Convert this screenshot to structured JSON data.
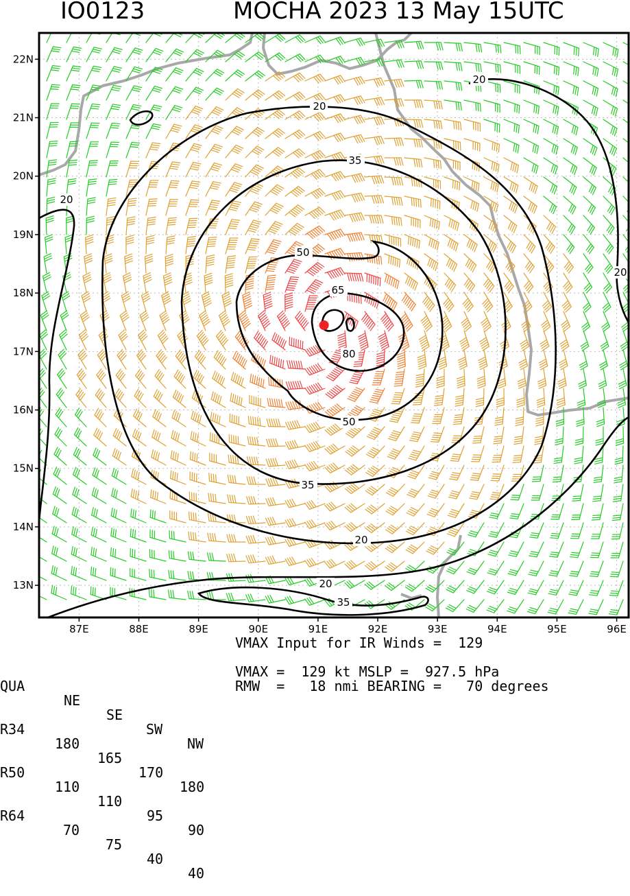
{
  "header": {
    "storm_id": "IO0123",
    "title": "MOCHA 2023 13 May 15UTC"
  },
  "map": {
    "lat_ticks": [
      "22N",
      "21N",
      "20N",
      "19N",
      "18N",
      "17N",
      "16N",
      "15N",
      "14N",
      "13N"
    ],
    "lon_ticks": [
      "87E",
      "88E",
      "89E",
      "90E",
      "91E",
      "92E",
      "93E",
      "94E",
      "95E",
      "96E"
    ],
    "storm_center": {
      "lon": 91.1,
      "lat": 17.45
    },
    "contour_labels": [
      "20",
      "20",
      "20",
      "20",
      "20",
      "20",
      "35",
      "35",
      "35",
      "50",
      "50",
      "65",
      "80"
    ],
    "colors": {
      "coast": "#a8a8a8",
      "barb_20": "#000000",
      "barb_35": "#22cc22",
      "barb_50": "#e0a030",
      "barb_65": "#f08030",
      "barb_80": "#ee4444",
      "center": "#ee2222",
      "contour": "#000000"
    }
  },
  "table": {
    "header": [
      "QUA",
      "NE",
      "SE",
      "SW",
      "NW"
    ],
    "rows": [
      [
        "R34",
        "180",
        "165",
        "170",
        "180"
      ],
      [
        "R50",
        "110",
        "110",
        "95",
        "90"
      ],
      [
        "R64",
        "70",
        "75",
        "40",
        "40"
      ]
    ]
  },
  "info": {
    "line1": "VMAX Input for IR Winds =  129",
    "line2": "VMAX =  129 kt MSLP =  927.5 hPa",
    "line3": "RMW  =   18 nmi BEARING =   70 degrees"
  }
}
